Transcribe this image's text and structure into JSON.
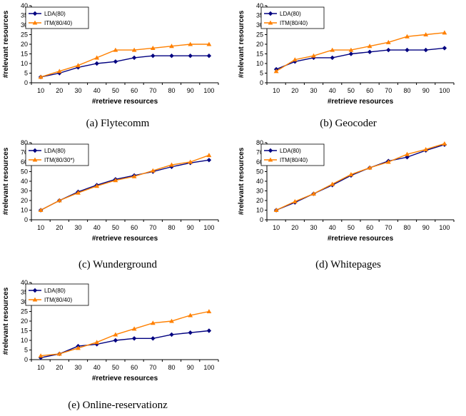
{
  "colors": {
    "lda": "#000080",
    "itm": "#FF8000",
    "axis": "#000000",
    "grid": "#9a9a9a"
  },
  "chart_data": [
    {
      "type": "line",
      "caption": "(a) Flytecomm",
      "xlabel": "#retrieve resources",
      "ylabel": "#relevant resources",
      "x": [
        10,
        20,
        30,
        40,
        50,
        60,
        70,
        80,
        90,
        100
      ],
      "ylim": [
        0,
        40
      ],
      "yticks": [
        0,
        5,
        10,
        15,
        20,
        25,
        30,
        35,
        40
      ],
      "legend_position": "top-left",
      "series": [
        {
          "name": "LDA(80)",
          "marker": "diamond",
          "values": [
            3,
            5,
            8,
            10,
            11,
            13,
            14,
            14,
            14,
            14
          ]
        },
        {
          "name": "ITM(80/40)",
          "marker": "triangle",
          "values": [
            3,
            6,
            9,
            13,
            17,
            17,
            18,
            19,
            20,
            20
          ]
        }
      ]
    },
    {
      "type": "line",
      "caption": "(b) Geocoder",
      "xlabel": "#retrieve resources",
      "ylabel": "#relevant resources",
      "x": [
        10,
        20,
        30,
        40,
        50,
        60,
        70,
        80,
        90,
        100
      ],
      "ylim": [
        0,
        40
      ],
      "yticks": [
        0,
        5,
        10,
        15,
        20,
        25,
        30,
        35,
        40
      ],
      "legend_position": "top-left",
      "series": [
        {
          "name": "LDA(80)",
          "marker": "diamond",
          "values": [
            7,
            11,
            13,
            13,
            15,
            16,
            17,
            17,
            17,
            18
          ]
        },
        {
          "name": "ITM(80/40)",
          "marker": "triangle",
          "values": [
            6,
            12,
            14,
            17,
            17,
            19,
            21,
            24,
            25,
            26
          ]
        }
      ]
    },
    {
      "type": "line",
      "caption": "(c) Wunderground",
      "xlabel": "#retrieve resources",
      "ylabel": "#relevant resources",
      "x": [
        10,
        20,
        30,
        40,
        50,
        60,
        70,
        80,
        90,
        100
      ],
      "ylim": [
        0,
        80
      ],
      "yticks": [
        0,
        10,
        20,
        30,
        40,
        50,
        60,
        70,
        80
      ],
      "legend_position": "top-left",
      "series": [
        {
          "name": "LDA(80)",
          "marker": "diamond",
          "values": [
            10,
            20,
            29,
            36,
            42,
            46,
            50,
            55,
            59,
            62
          ]
        },
        {
          "name": "ITM(80/30*)",
          "marker": "triangle",
          "values": [
            10,
            20,
            28,
            35,
            41,
            45,
            51,
            57,
            60,
            67
          ]
        }
      ]
    },
    {
      "type": "line",
      "caption": "(d) Whitepages",
      "xlabel": "#retrieve resources",
      "ylabel": "#relevant resources",
      "x": [
        10,
        20,
        30,
        40,
        50,
        60,
        70,
        80,
        90,
        100
      ],
      "ylim": [
        0,
        80
      ],
      "yticks": [
        0,
        10,
        20,
        30,
        40,
        50,
        60,
        70,
        80
      ],
      "legend_position": "top-left",
      "series": [
        {
          "name": "LDA(80)",
          "marker": "diamond",
          "values": [
            10,
            18,
            27,
            36,
            46,
            54,
            61,
            65,
            72,
            78
          ]
        },
        {
          "name": "ITM(80/40)",
          "marker": "triangle",
          "values": [
            10,
            19,
            27,
            37,
            47,
            54,
            60,
            68,
            73,
            79
          ]
        }
      ]
    },
    {
      "type": "line",
      "caption": "(e) Online-reservationz",
      "xlabel": "#retrieve resources",
      "ylabel": "#relevant resources",
      "x": [
        10,
        20,
        30,
        40,
        50,
        60,
        70,
        80,
        90,
        100
      ],
      "ylim": [
        0,
        40
      ],
      "yticks": [
        0,
        5,
        10,
        15,
        20,
        25,
        30,
        35,
        40
      ],
      "legend_position": "top-left",
      "series": [
        {
          "name": "LDA(80)",
          "marker": "diamond",
          "values": [
            1,
            3,
            7,
            8,
            10,
            11,
            11,
            13,
            14,
            15
          ]
        },
        {
          "name": "ITM(80/40)",
          "marker": "triangle",
          "values": [
            2,
            3,
            6,
            9,
            13,
            16,
            19,
            20,
            23,
            25
          ]
        }
      ]
    }
  ]
}
